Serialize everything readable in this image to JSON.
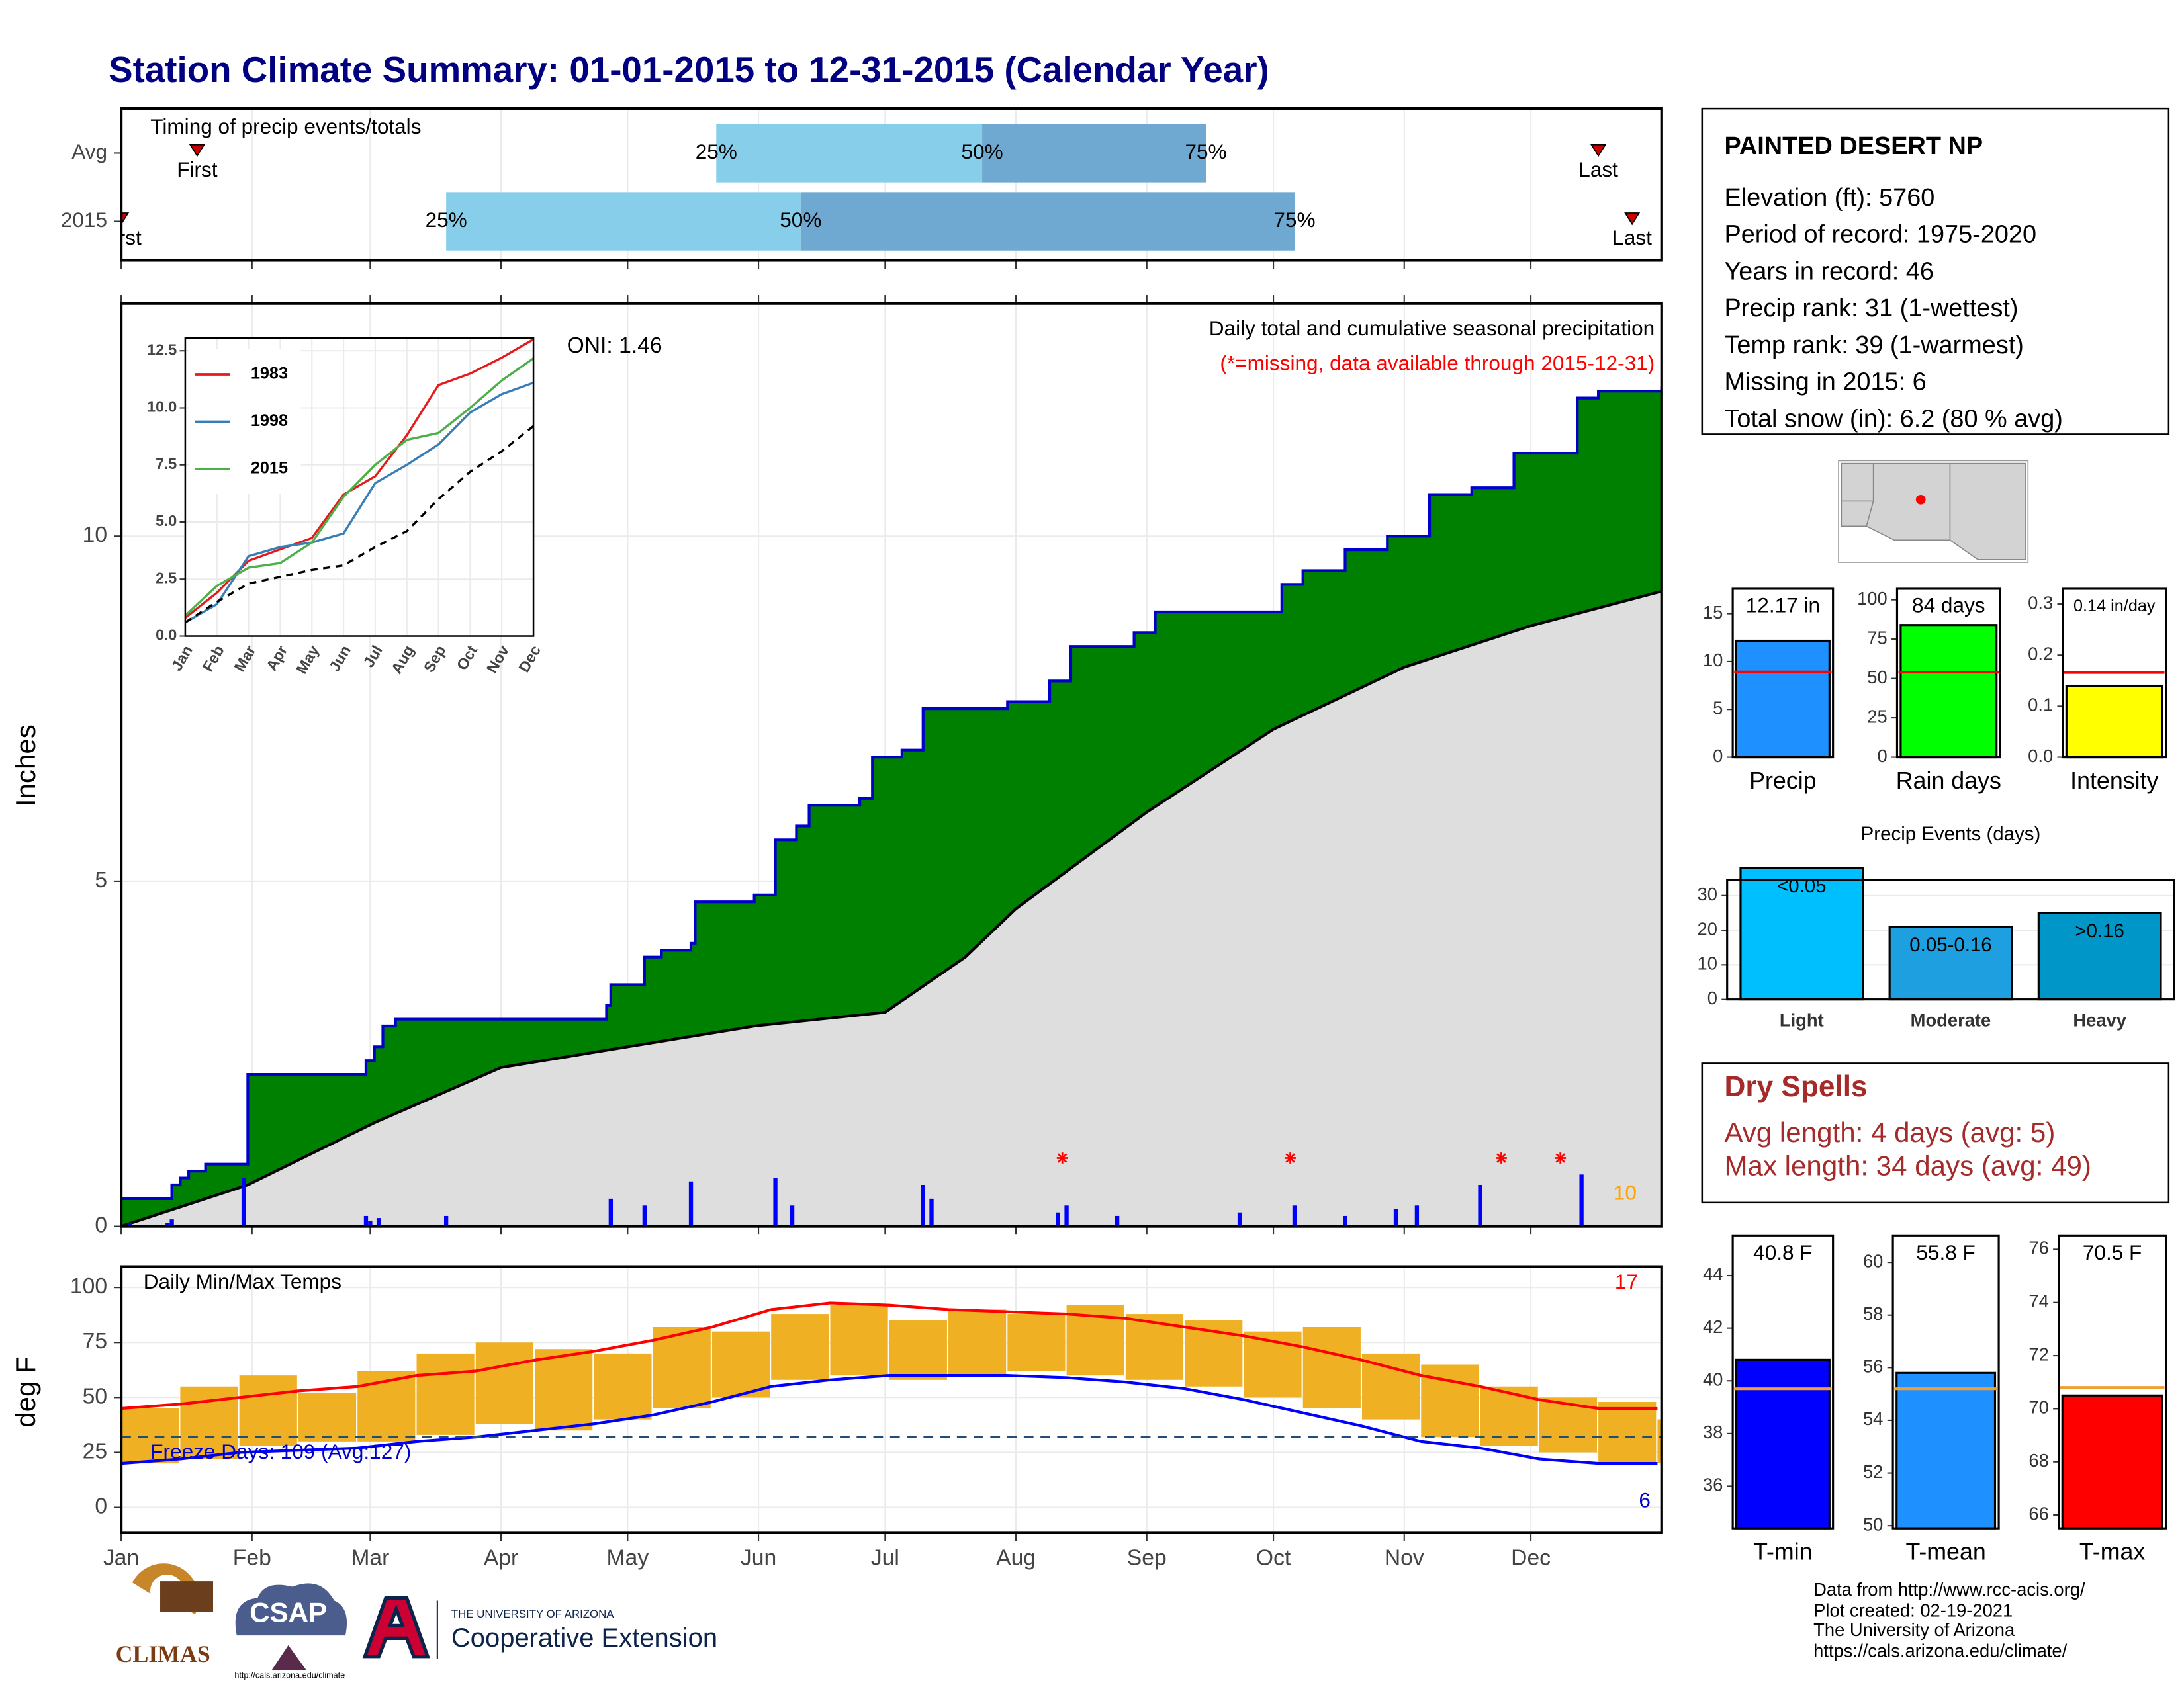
{
  "title": "Station Climate Summary: 01-01-2015 to 12-31-2015 (Calendar Year)",
  "chart_data": [
    {
      "type": "timeline",
      "title": "Timing of precip events/totals",
      "categories": [
        "Avg",
        "2015"
      ],
      "xlim": [
        0,
        365
      ],
      "xticks": [
        0,
        31,
        59,
        90,
        120,
        151,
        181,
        212,
        243,
        273,
        304,
        334
      ],
      "series": [
        {
          "name": "First",
          "color": "#cc0000",
          "values": [
            18,
            0
          ]
        },
        {
          "name": "25%",
          "color": "#87ceeb",
          "values": [
            141,
            77
          ]
        },
        {
          "name": "50%",
          "color": "#6fa8d0",
          "values": [
            204,
            161
          ]
        },
        {
          "name": "75%",
          "values": [
            257,
            278
          ]
        },
        {
          "name": "Last",
          "color": "#cc0000",
          "values": [
            350,
            358
          ]
        }
      ]
    },
    {
      "type": "cumulative",
      "title": "Daily total and cumulative seasonal precipitation",
      "subtitle": "(*=missing, data available through 2015-12-31)",
      "annotations": [
        "ONI: 1.46",
        "10"
      ],
      "ylabel": "Inches",
      "xlim": [
        0,
        365
      ],
      "ylim": [
        0,
        13.37
      ],
      "xticks": [
        0,
        31,
        59,
        90,
        120,
        151,
        181,
        212,
        243,
        273,
        304,
        334
      ],
      "yticks": [
        0,
        5,
        10
      ],
      "grid": true,
      "series": [
        {
          "color": "#008000",
          "line_color": "#0000cd",
          "x": [
            0,
            10,
            12,
            14,
            16,
            20,
            30,
            55,
            58,
            60,
            62,
            65,
            115,
            116,
            122,
            124,
            128,
            135,
            136,
            150,
            155,
            160,
            163,
            175,
            178,
            185,
            190,
            205,
            210,
            220,
            225,
            240,
            245,
            270,
            275,
            280,
            290,
            300,
            310,
            320,
            330,
            345,
            350,
            365
          ],
          "values": [
            0.4,
            0.4,
            0.6,
            0.7,
            0.8,
            0.9,
            2.2,
            2.2,
            2.4,
            2.6,
            2.9,
            3.0,
            3.2,
            3.5,
            3.5,
            3.9,
            4.0,
            4.1,
            4.7,
            4.8,
            5.6,
            5.8,
            6.1,
            6.2,
            6.8,
            6.9,
            7.5,
            7.5,
            7.6,
            7.9,
            8.4,
            8.6,
            8.9,
            8.9,
            9.3,
            9.5,
            9.8,
            10.0,
            10.6,
            10.7,
            11.2,
            12.0,
            12.1,
            12.17
          ]
        },
        {
          "color": "#dedede",
          "line_color": "#000000",
          "x": [
            0,
            30,
            60,
            90,
            120,
            150,
            181,
            200,
            212,
            243,
            273,
            304,
            334,
            365
          ],
          "values": [
            0,
            0.6,
            1.5,
            2.3,
            2.6,
            2.9,
            3.1,
            3.9,
            4.6,
            6.0,
            7.2,
            8.1,
            8.7,
            9.2
          ]
        }
      ],
      "bars": {
        "color": "#0000ff",
        "x": [
          2,
          11,
          12,
          29,
          58,
          59,
          61,
          77,
          116,
          124,
          135,
          155,
          159,
          190,
          192,
          222,
          224,
          236,
          265,
          278,
          290,
          302,
          307,
          322,
          346
        ],
        "values": [
          0.05,
          0.05,
          0.1,
          0.7,
          0.15,
          0.08,
          0.12,
          0.15,
          0.4,
          0.3,
          0.65,
          0.7,
          0.3,
          0.6,
          0.4,
          0.2,
          0.3,
          0.15,
          0.2,
          0.3,
          0.15,
          0.25,
          0.3,
          0.6,
          0.75
        ]
      },
      "missing": {
        "color": "#ff0000",
        "x": [
          223,
          277,
          327,
          341
        ]
      }
    },
    {
      "type": "line",
      "categories": [
        "Jan",
        "Feb",
        "Mar",
        "Apr",
        "May",
        "Jun",
        "Jul",
        "Aug",
        "Sep",
        "Oct",
        "Nov",
        "Dec"
      ],
      "ylim": [
        0,
        13.05
      ],
      "yticks": [
        {
          "value": 0,
          "label": "0.0"
        },
        2.5,
        {
          "value": 5,
          "label": "5.0"
        },
        7.5,
        {
          "value": 10,
          "label": "10.0"
        },
        12.5
      ],
      "series": [
        {
          "name": "1983",
          "color": "#e41a1c",
          "values": [
            0.8,
            1.9,
            3.3,
            3.8,
            4.3,
            6.2,
            7.0,
            8.8,
            11.0,
            11.5,
            12.2,
            13.0
          ]
        },
        {
          "name": "1998",
          "color": "#377eb8",
          "values": [
            0.6,
            1.4,
            3.5,
            3.9,
            4.1,
            4.5,
            6.7,
            7.5,
            8.4,
            9.8,
            10.6,
            11.1
          ]
        },
        {
          "name": "2015",
          "color": "#4daf4a",
          "values": [
            0.9,
            2.2,
            3.0,
            3.2,
            4.1,
            6.1,
            7.5,
            8.6,
            8.9,
            10.0,
            11.2,
            12.17
          ]
        },
        {
          "color": "#000000",
          "dash": true,
          "values": [
            0.6,
            1.5,
            2.3,
            2.6,
            2.9,
            3.1,
            3.9,
            4.6,
            6.0,
            7.2,
            8.1,
            9.2
          ]
        }
      ]
    },
    {
      "type": "temperature",
      "title": "Daily Min/Max Temps",
      "annotations": [
        "17",
        "Freeze Days: 109 (Avg:127)",
        "6"
      ],
      "ylabel": "deg F",
      "xlim": [
        0,
        365
      ],
      "ylim": [
        -11.4,
        109.5
      ],
      "yticks": [
        0,
        25,
        50,
        75,
        100
      ],
      "grid": true,
      "xticks": [
        {
          "value": 0,
          "label": "Jan"
        },
        {
          "value": 31,
          "label": "Feb"
        },
        {
          "value": 59,
          "label": "Mar"
        },
        {
          "value": 90,
          "label": "Apr"
        },
        {
          "value": 120,
          "label": "May"
        },
        {
          "value": 151,
          "label": "Jun"
        },
        {
          "value": 181,
          "label": "Jul"
        },
        {
          "value": 212,
          "label": "Aug"
        },
        {
          "value": 243,
          "label": "Sep"
        },
        {
          "value": 273,
          "label": "Oct"
        },
        {
          "value": 304,
          "label": "Nov"
        },
        {
          "value": 334,
          "label": "Dec"
        }
      ],
      "freeze": 32,
      "bin_days": 14,
      "x": [
        0,
        14,
        28,
        42,
        56,
        70,
        84,
        98,
        112,
        126,
        140,
        154,
        168,
        182,
        196,
        210,
        224,
        238,
        252,
        266,
        280,
        294,
        308,
        322,
        336,
        350,
        364
      ],
      "lines": [
        {
          "color": "#ff0000",
          "values": [
            45,
            47,
            50,
            53,
            55,
            60,
            62,
            67,
            71,
            76,
            82,
            90,
            93,
            92,
            90,
            89,
            88,
            86,
            82,
            78,
            73,
            67,
            60,
            55,
            49,
            45,
            45
          ]
        },
        {
          "color": "#0000ff",
          "values": [
            20,
            22,
            25,
            26,
            27,
            30,
            32,
            35,
            38,
            42,
            48,
            55,
            58,
            60,
            60,
            60,
            59,
            57,
            54,
            49,
            43,
            37,
            30,
            27,
            22,
            20,
            20
          ]
        }
      ],
      "bars": {
        "color": "#efb023",
        "high": [
          45,
          55,
          60,
          52,
          62,
          70,
          75,
          72,
          70,
          82,
          80,
          88,
          92,
          85,
          90,
          88,
          92,
          88,
          85,
          80,
          82,
          70,
          65,
          55,
          50,
          48,
          40
        ],
        "low": [
          20,
          22,
          28,
          30,
          30,
          33,
          38,
          35,
          40,
          45,
          50,
          58,
          60,
          58,
          60,
          62,
          60,
          58,
          55,
          50,
          45,
          40,
          32,
          28,
          25,
          20,
          20
        ]
      }
    },
    {
      "type": "bar",
      "categories": [
        "Precip"
      ],
      "values": [
        12.17
      ],
      "value_labels": [
        "12.17 in"
      ],
      "color": "#1e90ff",
      "avg": 8.9,
      "avg_color": "#ff0000",
      "ylim": [
        0,
        17.6
      ],
      "yticks": [
        0,
        5,
        10,
        15
      ]
    },
    {
      "type": "bar",
      "categories": [
        "Rain days"
      ],
      "values": [
        84
      ],
      "value_labels": [
        "84 days"
      ],
      "color": "#00ff00",
      "avg": 54,
      "avg_color": "#ff0000",
      "ylim": [
        0,
        107
      ],
      "yticks": [
        0,
        25,
        50,
        75,
        100
      ]
    },
    {
      "type": "bar",
      "categories": [
        "Intensity"
      ],
      "values": [
        0.14
      ],
      "value_labels": [
        "0.14 in/day"
      ],
      "color": "#ffff00",
      "avg": 0.166,
      "avg_color": "#ff0000",
      "ylim": [
        0,
        0.33
      ],
      "yticks": [
        {
          "value": 0,
          "label": "0.0"
        },
        0.1,
        0.2,
        0.3
      ]
    },
    {
      "type": "bar",
      "title": "Precip Events (days)",
      "categories": [
        "Light",
        "Moderate",
        "Heavy"
      ],
      "values": [
        38,
        21,
        25
      ],
      "bin_labels": [
        "<0.05",
        "0.05-0.16",
        ">0.16"
      ],
      "colors": [
        "#00bfff",
        "#1ea0e0",
        "#0096c8"
      ],
      "ylim": [
        0,
        34.6
      ],
      "yticks": [
        0,
        10,
        20,
        30
      ],
      "grid": true
    },
    {
      "type": "bar",
      "categories": [
        "T-min"
      ],
      "values": [
        40.8
      ],
      "value_labels": [
        "40.8 F"
      ],
      "color": "#0000ff",
      "avg": 39.7,
      "avg_color": "#f0a030",
      "ylim": [
        34.4,
        45.5
      ],
      "yticks": [
        36,
        38,
        40,
        42,
        44
      ]
    },
    {
      "type": "bar",
      "categories": [
        "T-mean"
      ],
      "values": [
        55.8
      ],
      "value_labels": [
        "55.8 F"
      ],
      "color": "#1e90ff",
      "avg": 55.2,
      "avg_color": "#f0a030",
      "ylim": [
        49.9,
        61.0
      ],
      "yticks": [
        50,
        52,
        54,
        56,
        58,
        60
      ]
    },
    {
      "type": "bar",
      "categories": [
        "T-max"
      ],
      "values": [
        70.5
      ],
      "value_labels": [
        "70.5 F"
      ],
      "color": "#ff0000",
      "avg": 70.8,
      "avg_color": "#f0a030",
      "ylim": [
        65.5,
        76.5
      ],
      "yticks": [
        66,
        68,
        70,
        72,
        74,
        76
      ]
    }
  ],
  "station_info": {
    "name": "PAINTED DESERT NP",
    "lines": [
      "Elevation (ft): 5760",
      "Period of record: 1975-2020",
      "Years in record: 46",
      "Precip rank: 31 (1-wettest)",
      "Temp rank: 39 (1-warmest)",
      "Missing in 2015: 6",
      "Total snow (in): 6.2 (80 % avg)"
    ]
  },
  "dry_spells": {
    "title": "Dry Spells",
    "lines": [
      "Avg length: 4 days (avg: 5)",
      "Max length: 34 days (avg: 49)"
    ]
  },
  "footer": [
    "Data from http://www.rcc-acis.org/",
    "Plot created: 02-19-2021",
    "The University of Arizona",
    "https://cals.arizona.edu/climate/"
  ],
  "logos": {
    "climas": "CLIMAS",
    "csap": "CSAP",
    "csap_url": "http://cals.arizona.edu/climate",
    "ua": "THE UNIVERSITY OF ARIZONA",
    "coop": "Cooperative Extension"
  }
}
